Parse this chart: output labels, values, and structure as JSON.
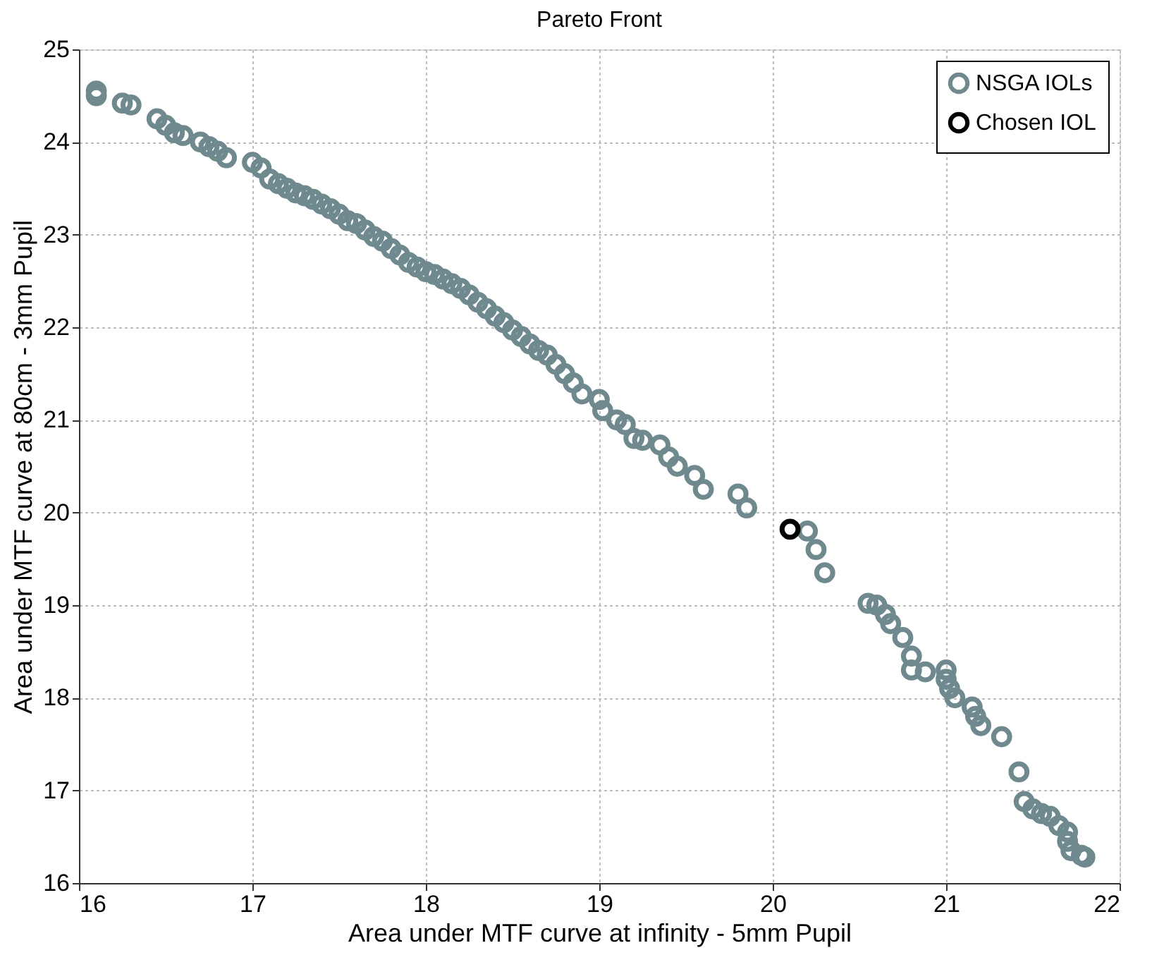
{
  "chart_data": {
    "type": "scatter",
    "title": "Pareto Front",
    "xlabel": "Area under MTF curve at infinity - 5mm Pupil",
    "ylabel": "Area under MTF curve at 80cm - 3mm Pupil",
    "xlim": [
      16,
      22
    ],
    "xticks": [
      16,
      17,
      18,
      19,
      20,
      21,
      22
    ],
    "ylim": [
      16,
      25
    ],
    "yticks": [
      16,
      17,
      18,
      19,
      20,
      21,
      22,
      23,
      24,
      25
    ],
    "grid": true,
    "legend": "top right",
    "marker": "circle",
    "series": [
      {
        "name": "NSGA IOLs",
        "color": "#6e8a8e",
        "x": [
          16.1,
          16.1,
          16.25,
          16.3,
          16.45,
          16.5,
          16.55,
          16.6,
          16.7,
          16.75,
          16.8,
          16.85,
          17.0,
          17.05,
          17.1,
          17.15,
          17.2,
          17.25,
          17.3,
          17.35,
          17.4,
          17.45,
          17.5,
          17.55,
          17.6,
          17.65,
          17.7,
          17.75,
          17.8,
          17.85,
          17.9,
          17.95,
          18.0,
          18.05,
          18.1,
          18.15,
          18.2,
          18.25,
          18.3,
          18.35,
          18.4,
          18.45,
          18.5,
          18.55,
          18.6,
          18.65,
          18.7,
          18.75,
          18.8,
          18.85,
          18.9,
          19.0,
          19.02,
          19.1,
          19.15,
          19.2,
          19.25,
          19.35,
          19.4,
          19.45,
          19.55,
          19.6,
          19.8,
          19.85,
          20.2,
          20.25,
          20.3,
          20.55,
          20.6,
          20.65,
          20.68,
          20.75,
          20.8,
          20.8,
          20.88,
          21.0,
          21.0,
          21.02,
          21.05,
          21.15,
          21.17,
          21.2,
          21.32,
          21.42,
          21.45,
          21.5,
          21.55,
          21.6,
          21.65,
          21.7,
          21.7,
          21.72,
          21.78,
          21.8
        ],
        "values": [
          24.5,
          24.55,
          24.42,
          24.4,
          24.25,
          24.18,
          24.1,
          24.07,
          24.0,
          23.95,
          23.9,
          23.83,
          23.78,
          23.72,
          23.6,
          23.55,
          23.5,
          23.45,
          23.42,
          23.38,
          23.33,
          23.28,
          23.22,
          23.15,
          23.12,
          23.05,
          22.98,
          22.93,
          22.85,
          22.78,
          22.7,
          22.65,
          22.6,
          22.57,
          22.52,
          22.47,
          22.42,
          22.35,
          22.27,
          22.2,
          22.12,
          22.05,
          21.97,
          21.9,
          21.82,
          21.75,
          21.7,
          21.6,
          21.5,
          21.4,
          21.28,
          21.22,
          21.1,
          21.0,
          20.95,
          20.8,
          20.78,
          20.73,
          20.6,
          20.5,
          20.4,
          20.25,
          20.2,
          20.05,
          19.8,
          19.6,
          19.35,
          19.02,
          19.0,
          18.9,
          18.8,
          18.65,
          18.45,
          18.3,
          18.28,
          18.3,
          18.2,
          18.1,
          18.0,
          17.9,
          17.8,
          17.7,
          17.58,
          17.2,
          16.88,
          16.8,
          16.75,
          16.72,
          16.62,
          16.55,
          16.45,
          16.35,
          16.3,
          16.28
        ]
      },
      {
        "name": "Chosen IOL",
        "color": "#000000",
        "x": [
          20.1
        ],
        "values": [
          19.82
        ]
      }
    ]
  }
}
